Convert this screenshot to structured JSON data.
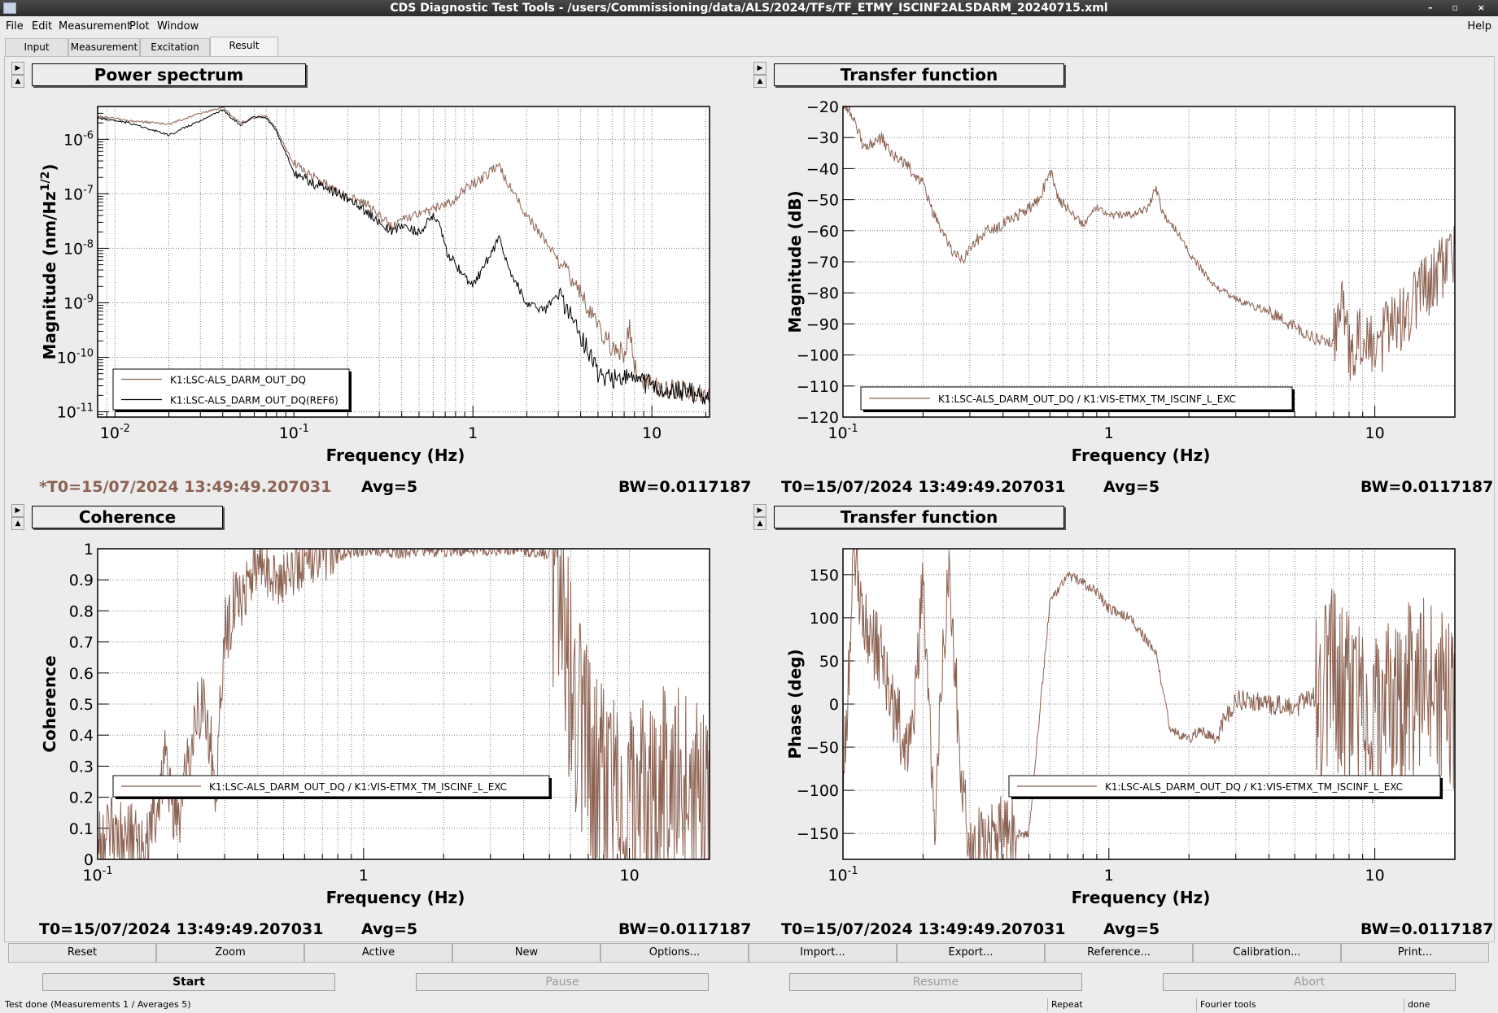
{
  "window": {
    "title": "CDS Diagnostic Test Tools - /users/Commissioning/data/ALS/2024/TFs/TF_ETMY_ISCINF2ALSDARM_20240715.xml"
  },
  "menu": {
    "file": "File",
    "edit": "Edit",
    "measurement": "Measurement",
    "plot": "Plot",
    "window": "Window",
    "help": "Help"
  },
  "tabs": [
    "Input",
    "Measurement",
    "Excitation",
    "Result"
  ],
  "colors": {
    "trace": "#8c6252",
    "reference": "#000000",
    "plot_bg": "#ffffff",
    "grid": "#707070"
  },
  "panels": {
    "ps": {
      "title": "Power spectrum",
      "ylabel": "Magnitude (nm/Hz^1/2)",
      "xlabel": "Frequency (Hz)",
      "xticks": [
        "10^-2",
        "10^-1",
        "1",
        "10"
      ],
      "yticks": [
        "10^-11",
        "10^-10",
        "10^-9",
        "10^-8",
        "10^-7",
        "10^-6"
      ],
      "legend": [
        "K1:LSC-ALS_DARM_OUT_DQ",
        "K1:LSC-ALS_DARM_OUT_DQ(REF6)"
      ],
      "t0": "*T0=15/07/2024 13:49:49.207031",
      "avg": "Avg=5",
      "bw": "BW=0.0117187"
    },
    "tfmag": {
      "title": "Transfer function",
      "ylabel": "Magnitude (dB)",
      "xlabel": "Frequency (Hz)",
      "xticks": [
        "10^-1",
        "1",
        "10"
      ],
      "yticks": [
        "-120",
        "-110",
        "-100",
        "-90",
        "-80",
        "-70",
        "-60",
        "-50",
        "-40",
        "-30",
        "-20"
      ],
      "legend": [
        "K1:LSC-ALS_DARM_OUT_DQ / K1:VIS-ETMX_TM_ISCINF_L_EXC"
      ],
      "t0": "T0=15/07/2024 13:49:49.207031",
      "avg": "Avg=5",
      "bw": "BW=0.0117187"
    },
    "coh": {
      "title": "Coherence",
      "ylabel": "Coherence",
      "xlabel": "Frequency (Hz)",
      "xticks": [
        "10^-1",
        "1",
        "10"
      ],
      "yticks": [
        "0",
        "0.1",
        "0.2",
        "0.3",
        "0.4",
        "0.5",
        "0.6",
        "0.7",
        "0.8",
        "0.9",
        "1"
      ],
      "legend": [
        "K1:LSC-ALS_DARM_OUT_DQ / K1:VIS-ETMX_TM_ISCINF_L_EXC"
      ],
      "t0": "T0=15/07/2024 13:49:49.207031",
      "avg": "Avg=5",
      "bw": "BW=0.0117187"
    },
    "tfph": {
      "title": "Transfer function",
      "ylabel": "Phase (deg)",
      "xlabel": "Frequency (Hz)",
      "xticks": [
        "10^-1",
        "1",
        "10"
      ],
      "yticks": [
        "-150",
        "-100",
        "-50",
        "0",
        "50",
        "100",
        "150"
      ],
      "legend": [
        "K1:LSC-ALS_DARM_OUT_DQ / K1:VIS-ETMX_TM_ISCINF_L_EXC"
      ],
      "t0": "T0=15/07/2024 13:49:49.207031",
      "avg": "Avg=5",
      "bw": "BW=0.0117187"
    }
  },
  "chart_data": [
    {
      "type": "line",
      "title": "Power spectrum",
      "xlabel": "Frequency (Hz)",
      "ylabel": "Magnitude (nm/Hz^1/2)",
      "xscale": "log",
      "yscale": "log",
      "xlim": [
        0.008,
        21
      ],
      "ylim": [
        8e-12,
        4e-06
      ],
      "grid": true,
      "legend_position": "bottom-left",
      "series": [
        {
          "name": "K1:LSC-ALS_DARM_OUT_DQ",
          "color": "#8c6252",
          "x": [
            0.0085,
            0.012,
            0.02,
            0.03,
            0.04,
            0.05,
            0.06,
            0.07,
            0.08,
            0.1,
            0.13,
            0.18,
            0.25,
            0.3,
            0.35,
            0.4,
            0.5,
            0.6,
            0.65,
            0.7,
            0.8,
            0.9,
            1.0,
            1.2,
            1.4,
            1.5,
            1.7,
            2.0,
            2.5,
            3.0,
            4.0,
            5.0,
            6.0,
            7.0,
            7.5,
            8.0,
            9.0,
            10.0,
            14.0,
            20.0
          ],
          "y": [
            2.6e-06,
            2.2e-06,
            1.9e-06,
            3e-06,
            3.8e-06,
            2e-06,
            2.5e-06,
            2.7e-06,
            1.5e-06,
            3.5e-07,
            2e-07,
            1e-07,
            7e-08,
            4e-08,
            2.5e-08,
            3.5e-08,
            4.5e-08,
            5e-08,
            6e-08,
            6e-08,
            8e-08,
            1.2e-07,
            1.5e-07,
            2.2e-07,
            3.5e-07,
            2e-07,
            1e-07,
            4e-08,
            1.5e-08,
            6e-09,
            1.5e-09,
            4e-10,
            1.5e-10,
            1.2e-10,
            3.5e-10,
            6e-11,
            4e-11,
            3e-11,
            2.5e-11,
            2e-11
          ]
        },
        {
          "name": "K1:LSC-ALS_DARM_OUT_DQ(REF6)",
          "color": "#000000",
          "x": [
            0.0085,
            0.012,
            0.02,
            0.03,
            0.04,
            0.05,
            0.06,
            0.07,
            0.08,
            0.1,
            0.13,
            0.18,
            0.25,
            0.3,
            0.35,
            0.4,
            0.5,
            0.6,
            0.65,
            0.7,
            0.8,
            0.9,
            1.0,
            1.2,
            1.4,
            1.6,
            2.0,
            2.5,
            3.0,
            3.5,
            4.0,
            5.0,
            6.0,
            7.0,
            8.0,
            10.0,
            14.0,
            20.0
          ],
          "y": [
            2.4e-06,
            2e-06,
            1.2e-06,
            2.2e-06,
            3.5e-06,
            1.8e-06,
            2.6e-06,
            2.5e-06,
            1.4e-06,
            2.5e-07,
            1.5e-07,
            1e-07,
            5e-08,
            3e-08,
            2e-08,
            2.5e-08,
            2e-08,
            4e-08,
            3e-08,
            1e-08,
            5e-09,
            3e-09,
            2e-09,
            6e-09,
            1.5e-08,
            4e-09,
            1e-09,
            7e-10,
            1.5e-09,
            6e-10,
            2.5e-10,
            5e-11,
            4e-11,
            5e-11,
            4e-11,
            3e-11,
            2.5e-11,
            2e-11
          ]
        }
      ]
    },
    {
      "type": "line",
      "title": "Transfer function",
      "xlabel": "Frequency (Hz)",
      "ylabel": "Magnitude (dB)",
      "xscale": "log",
      "xlim": [
        0.1,
        20
      ],
      "ylim": [
        -120,
        -20
      ],
      "grid": true,
      "legend_position": "bottom-center",
      "series": [
        {
          "name": "K1:LSC-ALS_DARM_OUT_DQ / K1:VIS-ETMX_TM_ISCINF_L_EXC",
          "color": "#8c6252",
          "x": [
            0.105,
            0.11,
            0.12,
            0.14,
            0.15,
            0.17,
            0.2,
            0.22,
            0.25,
            0.28,
            0.3,
            0.35,
            0.4,
            0.45,
            0.5,
            0.55,
            0.6,
            0.65,
            0.7,
            0.8,
            0.9,
            1.0,
            1.2,
            1.4,
            1.5,
            1.6,
            1.8,
            2.0,
            2.5,
            3.0,
            4.0,
            5.0,
            6.0,
            7.0,
            7.5,
            8.0,
            9.0,
            10.0,
            12.0,
            15.0,
            18.0,
            20.0
          ],
          "y": [
            -20,
            -25,
            -33,
            -30,
            -35,
            -38,
            -45,
            -55,
            -65,
            -70,
            -65,
            -60,
            -58,
            -55,
            -53,
            -50,
            -40,
            -50,
            -53,
            -58,
            -52,
            -55,
            -55,
            -53,
            -46,
            -55,
            -60,
            -67,
            -78,
            -82,
            -86,
            -91,
            -95,
            -96,
            -83,
            -98,
            -95,
            -98,
            -90,
            -80,
            -72,
            -68
          ]
        }
      ]
    },
    {
      "type": "line",
      "title": "Coherence",
      "xlabel": "Frequency (Hz)",
      "ylabel": "Coherence",
      "xscale": "log",
      "xlim": [
        0.1,
        20
      ],
      "ylim": [
        0,
        1
      ],
      "grid": true,
      "legend_position": "bottom-left",
      "series": [
        {
          "name": "K1:LSC-ALS_DARM_OUT_DQ / K1:VIS-ETMX_TM_ISCINF_L_EXC",
          "color": "#8c6252",
          "x": [
            0.1,
            0.12,
            0.15,
            0.18,
            0.2,
            0.25,
            0.28,
            0.3,
            0.35,
            0.4,
            0.5,
            0.6,
            0.7,
            0.8,
            1.0,
            1.5,
            2.0,
            3.0,
            4.0,
            5.0,
            6.0,
            7.0,
            8.0,
            10.0,
            15.0,
            20.0
          ],
          "y": [
            0.05,
            0.1,
            0.02,
            0.3,
            0.1,
            0.55,
            0.2,
            0.75,
            0.85,
            0.95,
            0.9,
            0.97,
            0.99,
            0.98,
            1.0,
            0.99,
            1.0,
            1.0,
            1.0,
            0.98,
            0.6,
            0.3,
            0.2,
            0.15,
            0.2,
            0.15
          ]
        }
      ]
    },
    {
      "type": "line",
      "title": "Transfer function",
      "xlabel": "Frequency (Hz)",
      "ylabel": "Phase (deg)",
      "xscale": "log",
      "xlim": [
        0.1,
        20
      ],
      "ylim": [
        -180,
        180
      ],
      "grid": true,
      "legend_position": "bottom-right",
      "series": [
        {
          "name": "K1:LSC-ALS_DARM_OUT_DQ / K1:VIS-ETMX_TM_ISCINF_L_EXC",
          "color": "#8c6252",
          "x": [
            0.1,
            0.11,
            0.12,
            0.14,
            0.16,
            0.18,
            0.2,
            0.22,
            0.25,
            0.28,
            0.3,
            0.35,
            0.4,
            0.5,
            0.6,
            0.7,
            0.8,
            0.9,
            1.0,
            1.2,
            1.5,
            1.7,
            2.0,
            2.2,
            2.5,
            3.0,
            4.0,
            5.0,
            6.0,
            7.0,
            8.0,
            10.0,
            15.0,
            20.0
          ],
          "y": [
            -100,
            170,
            100,
            50,
            -20,
            -60,
            140,
            -150,
            170,
            -100,
            -170,
            -160,
            -150,
            -150,
            120,
            150,
            140,
            130,
            110,
            100,
            60,
            -30,
            -40,
            -30,
            -40,
            5,
            0,
            -5,
            10,
            30,
            0,
            -20,
            20,
            0
          ]
        }
      ]
    }
  ],
  "buttons": [
    "Reset",
    "Zoom",
    "Active",
    "New",
    "Options...",
    "Import...",
    "Export...",
    "Reference...",
    "Calibration...",
    "Print..."
  ],
  "actions": {
    "start": "Start",
    "pause": "Pause",
    "resume": "Resume",
    "abort": "Abort"
  },
  "status": {
    "message": "Test done (Measurements 1 / Averages 5)",
    "repeat": "Repeat",
    "fourier": "Fourier tools",
    "state": "done"
  }
}
